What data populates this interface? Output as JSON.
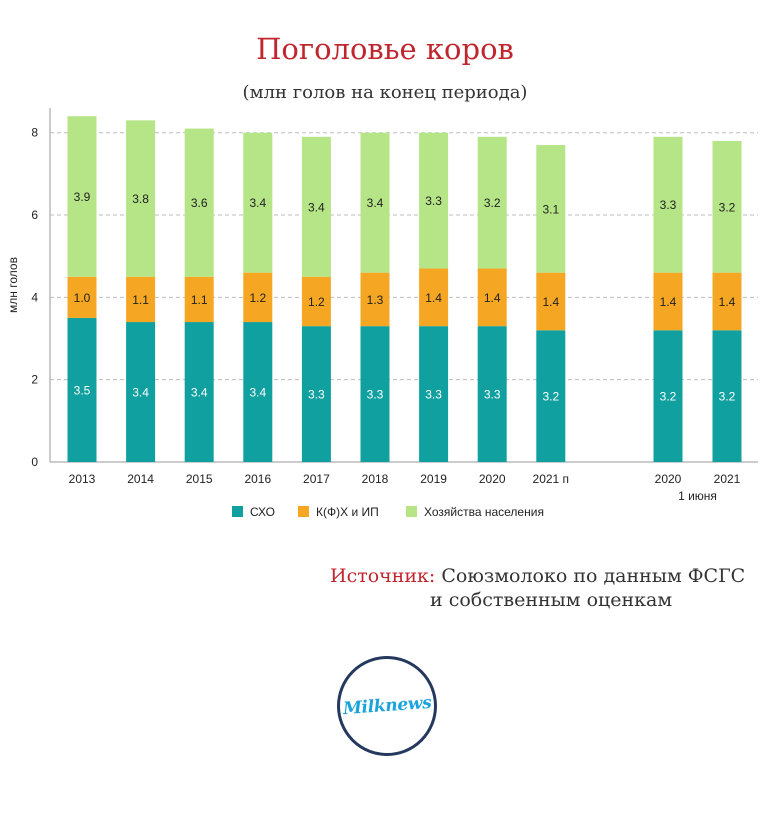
{
  "chart_data": {
    "type": "bar",
    "stacked": true,
    "title": "Поголовье коров",
    "subtitle": "(млн голов на конец периода)",
    "ylabel": "млн голов",
    "ylim": [
      0,
      8.6
    ],
    "yticks": [
      0,
      2,
      4,
      6,
      8
    ],
    "grid": true,
    "legend": "bottom",
    "categories": [
      "2013",
      "2014",
      "2015",
      "2016",
      "2017",
      "2018",
      "2019",
      "2020",
      "2021 п",
      "2020",
      "2021"
    ],
    "category_note": {
      "text": "1 июня",
      "under": [
        "2020",
        "2021"
      ]
    },
    "series": [
      {
        "name": "СХО",
        "color": "#11a0a0",
        "label_color": "#ffffff",
        "values": [
          3.5,
          3.4,
          3.4,
          3.4,
          3.3,
          3.3,
          3.3,
          3.3,
          3.2,
          3.2,
          3.2
        ]
      },
      {
        "name": "К(Ф)Х и ИП",
        "color": "#f5a623",
        "label_color": "#222222",
        "values": [
          1.0,
          1.1,
          1.1,
          1.2,
          1.2,
          1.3,
          1.4,
          1.4,
          1.4,
          1.4,
          1.4
        ]
      },
      {
        "name": "Хозяйства населения",
        "color": "#b5e586",
        "label_color": "#222222",
        "values": [
          3.9,
          3.8,
          3.6,
          3.4,
          3.4,
          3.4,
          3.3,
          3.2,
          3.1,
          3.3,
          3.2
        ]
      }
    ]
  },
  "source": {
    "label": "Источник:",
    "line1": "Союзмолоко по данным ФСГС",
    "line2": "и собственным оценкам"
  },
  "logo": {
    "text": "Milknews"
  }
}
